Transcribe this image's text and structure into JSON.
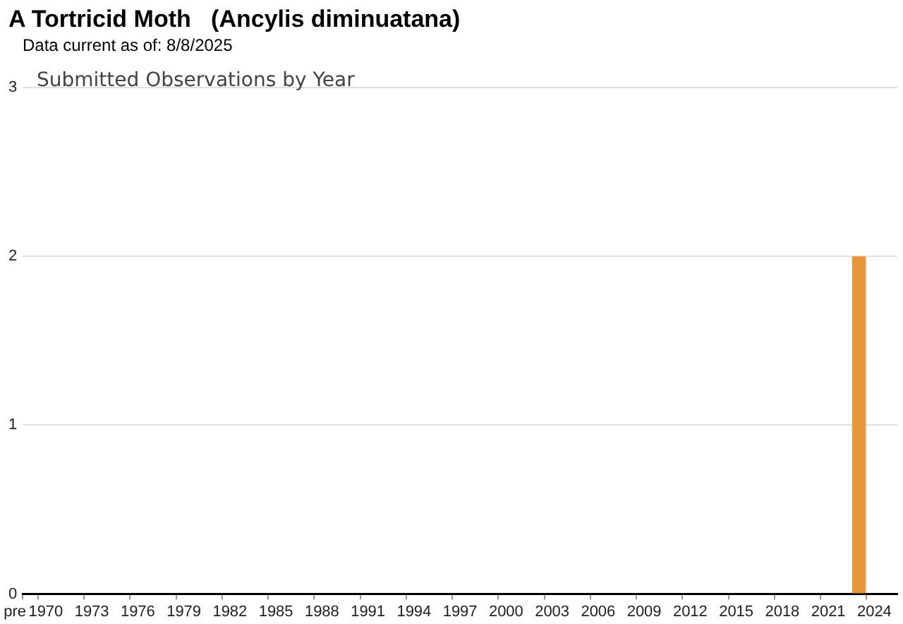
{
  "chart_data": {
    "type": "bar",
    "title": "A Tortricid Moth   (Ancylis diminuatana)",
    "subtitle": "Data current as of: 8/8/2025",
    "annotations": [
      "Submitted Observations by Year"
    ],
    "categories": [
      "pre",
      "1970",
      null,
      null,
      "1973",
      null,
      null,
      "1976",
      null,
      null,
      "1979",
      null,
      null,
      "1982",
      null,
      null,
      "1985",
      null,
      null,
      "1988",
      null,
      null,
      "1991",
      null,
      null,
      "1994",
      null,
      null,
      "1997",
      null,
      null,
      "2000",
      null,
      null,
      "2003",
      null,
      null,
      "2006",
      null,
      null,
      "2009",
      null,
      null,
      "2012",
      null,
      null,
      "2015",
      null,
      null,
      "2018",
      null,
      null,
      "2021",
      null,
      null,
      "2024",
      null
    ],
    "values": [
      0,
      0,
      0,
      0,
      0,
      0,
      0,
      0,
      0,
      0,
      0,
      0,
      0,
      0,
      0,
      0,
      0,
      0,
      0,
      0,
      0,
      0,
      0,
      0,
      0,
      0,
      0,
      0,
      0,
      0,
      0,
      0,
      0,
      0,
      0,
      0,
      0,
      0,
      0,
      0,
      0,
      0,
      0,
      0,
      0,
      0,
      0,
      0,
      0,
      0,
      0,
      0,
      0,
      0,
      2,
      0,
      0
    ],
    "color": "#e8963c",
    "ylim": [
      0,
      3
    ],
    "yticks": [
      0,
      1,
      2,
      3
    ],
    "grid": "y"
  }
}
